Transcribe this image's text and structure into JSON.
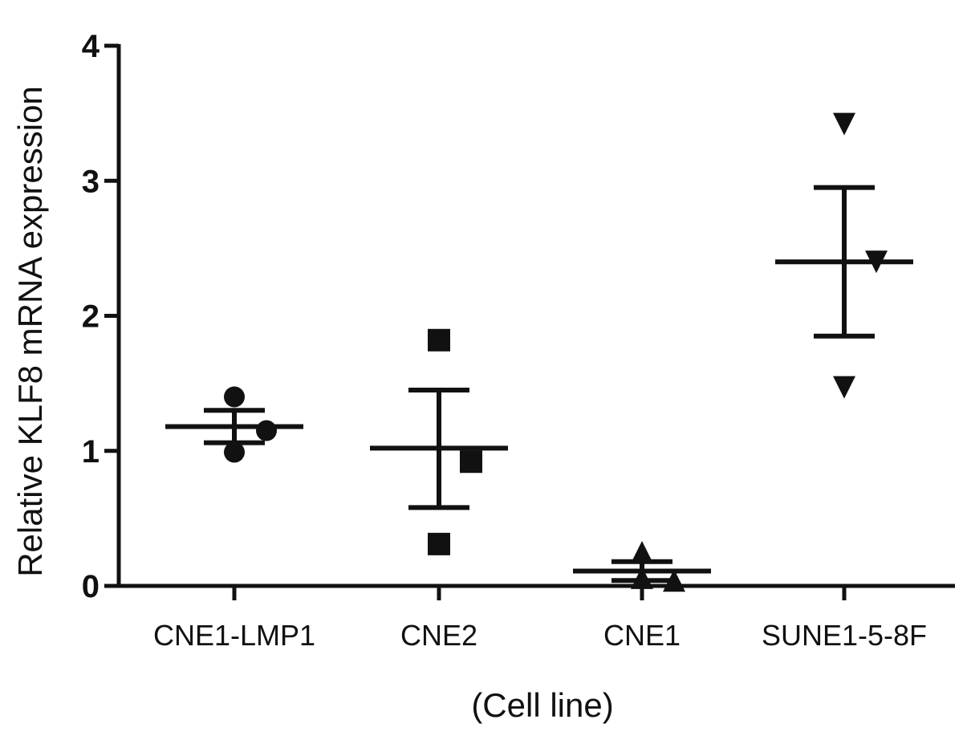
{
  "chart_data": {
    "type": "scatter",
    "title": "",
    "xlabel": "(Cell line)",
    "ylabel": "Relative KLF8 mRNA expression",
    "ylim": [
      0,
      4
    ],
    "yticks": [
      "0",
      "1",
      "2",
      "3",
      "4"
    ],
    "grid": false,
    "legend": "none",
    "categories": [
      "CNE1-LMP1",
      "CNE2",
      "CNE1",
      "SUNE1-5-8F"
    ],
    "groups": [
      {
        "category": "CNE1-LMP1",
        "marker": "circle",
        "points": [
          1.4,
          1.15,
          0.99
        ],
        "mean": 1.18,
        "sem_low": 1.06,
        "sem_high": 1.3
      },
      {
        "category": "CNE2",
        "marker": "square",
        "points": [
          1.82,
          0.92,
          0.31
        ],
        "mean": 1.02,
        "sem_low": 0.58,
        "sem_high": 1.45
      },
      {
        "category": "CNE1",
        "marker": "triangle-up",
        "points": [
          0.25,
          0.04,
          0.06
        ],
        "mean": 0.11,
        "sem_low": 0.04,
        "sem_high": 0.18
      },
      {
        "category": "SUNE1-5-8F",
        "marker": "triangle-down",
        "points": [
          3.42,
          2.4,
          1.47
        ],
        "mean": 2.4,
        "sem_low": 1.85,
        "sem_high": 2.95
      }
    ],
    "color": "#111111"
  }
}
